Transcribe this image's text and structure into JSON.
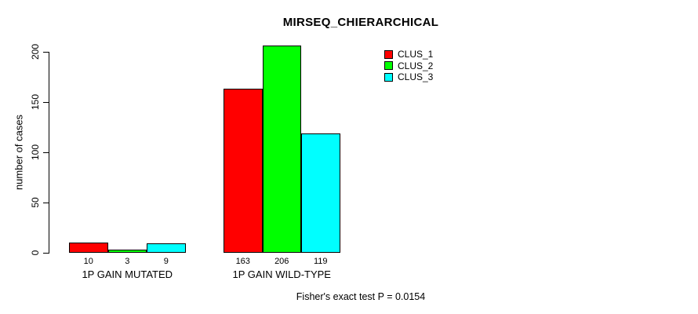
{
  "chart_data": {
    "type": "bar",
    "title": "MIRSEQ_CHIERARCHICAL",
    "ylabel": "number of cases",
    "categories": [
      "1P GAIN MUTATED",
      "1P GAIN WILD-TYPE"
    ],
    "series": [
      {
        "name": "CLUS_1",
        "color": "#ff0000",
        "values": [
          10,
          163
        ]
      },
      {
        "name": "CLUS_2",
        "color": "#00ff00",
        "values": [
          3,
          206
        ]
      },
      {
        "name": "CLUS_3",
        "color": "#00ffff",
        "values": [
          9,
          119
        ]
      }
    ],
    "y_ticks": [
      0,
      50,
      100,
      150,
      200
    ],
    "ylim": [
      0,
      200
    ],
    "grid": false,
    "legend_position": "top-right",
    "bar_borders": "#000000",
    "annotation": "Fisher's exact test P = 0.0154"
  }
}
